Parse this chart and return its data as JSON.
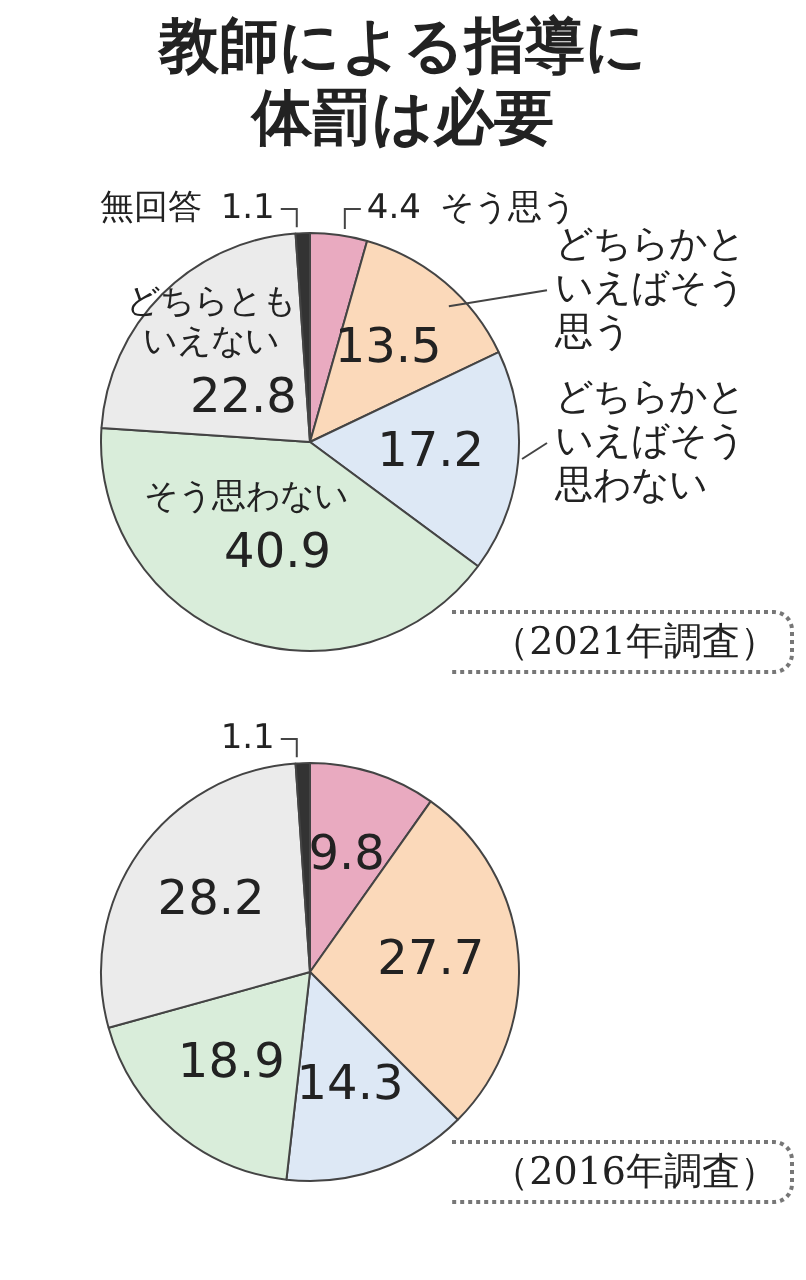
{
  "chart_data": [
    {
      "type": "pie",
      "title": "教師による指導に体罰は必要",
      "categories": [
        "そう思う",
        "どちらかといえばそう思う",
        "どちらかといえばそう思わない",
        "そう思わない",
        "どちらともいえない",
        "無回答"
      ],
      "values": [
        4.4,
        13.5,
        17.2,
        40.9,
        22.8,
        1.1
      ],
      "colors": [
        "#e9aac0",
        "#fbd9ba",
        "#dde8f5",
        "#d9edda",
        "#ebebeb",
        "#333333"
      ],
      "data_labels": true,
      "annotations": [
        "（2021年調査）"
      ]
    },
    {
      "type": "pie",
      "categories": [
        null,
        null,
        null,
        null,
        null,
        null
      ],
      "values": [
        9.8,
        27.7,
        14.3,
        18.9,
        28.2,
        1.1
      ],
      "colors": [
        "#e9aac0",
        "#fbd9ba",
        "#dde8f5",
        "#d9edda",
        "#ebebeb",
        "#333333"
      ],
      "data_labels": true,
      "annotations": [
        "（2016年調査）"
      ]
    }
  ]
}
